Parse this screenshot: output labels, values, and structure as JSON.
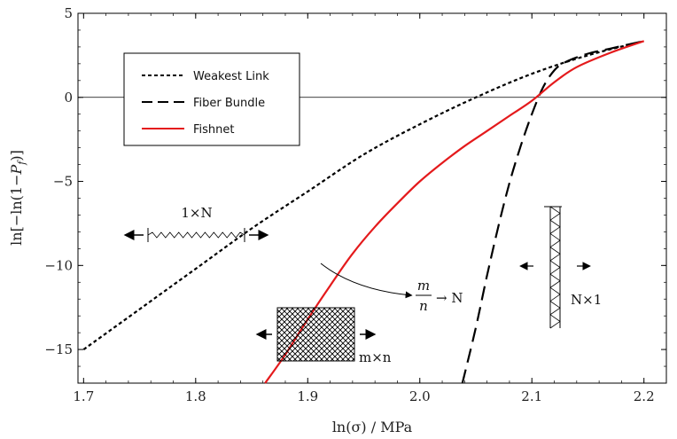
{
  "chart_data": {
    "type": "line",
    "title": "",
    "xlabel": "ln(σ) / MPa",
    "ylabel": "ln[−ln(1−P_f)]",
    "ylabel_parts": {
      "pre": "ln[−ln(1−",
      "sym": "P",
      "sub": "f",
      "post": ")]"
    },
    "xlim": [
      1.695,
      2.22
    ],
    "ylim": [
      -17,
      5
    ],
    "xticks": [
      1.7,
      1.8,
      1.9,
      2.0,
      2.1,
      2.2
    ],
    "xtick_labels": [
      "1.7",
      "1.8",
      "1.9",
      "2.0",
      "2.1",
      "2.2"
    ],
    "yticks": [
      5,
      0,
      -5,
      -10,
      -15
    ],
    "ytick_labels": [
      "5",
      "0",
      "−5",
      "−10",
      "−15"
    ],
    "grid": false,
    "hline": 0,
    "legend_position": "top-left",
    "series": [
      {
        "name": "Weakest Link",
        "color": "#000000",
        "style": "short-dash",
        "x": [
          1.7,
          1.75,
          1.8,
          1.85,
          1.9,
          1.95,
          2.0,
          2.05,
          2.1,
          2.15,
          2.2
        ],
        "y": [
          -15.0,
          -12.6,
          -10.2,
          -7.8,
          -5.6,
          -3.4,
          -1.6,
          0.0,
          1.4,
          2.5,
          3.35
        ]
      },
      {
        "name": "Fiber Bundle",
        "color": "#000000",
        "style": "long-dash",
        "x": [
          2.038,
          2.05,
          2.06,
          2.07,
          2.08,
          2.09,
          2.1,
          2.11,
          2.12,
          2.13,
          2.15,
          2.17,
          2.2
        ],
        "y": [
          -17.0,
          -13.7,
          -10.6,
          -7.7,
          -5.1,
          -2.9,
          -1.0,
          0.6,
          1.6,
          2.1,
          2.6,
          2.9,
          3.35
        ]
      },
      {
        "name": "Fishnet",
        "color": "#e41a1c",
        "style": "solid",
        "x": [
          1.862,
          1.88,
          1.9,
          1.92,
          1.94,
          1.96,
          1.98,
          2.0,
          2.02,
          2.04,
          2.06,
          2.08,
          2.1,
          2.12,
          2.14,
          2.17,
          2.2
        ],
        "y": [
          -17.0,
          -15.3,
          -13.2,
          -11.2,
          -9.3,
          -7.7,
          -6.3,
          -5.0,
          -3.9,
          -2.9,
          -2.0,
          -1.1,
          -0.2,
          0.9,
          1.8,
          2.65,
          3.35
        ]
      }
    ],
    "annotations": {
      "chain_label": "1×N",
      "mesh_label": "m×n",
      "ratio_num": "m",
      "ratio_den": "n",
      "ratio_arrow": "→ N",
      "bundle_label": "N×1"
    }
  }
}
